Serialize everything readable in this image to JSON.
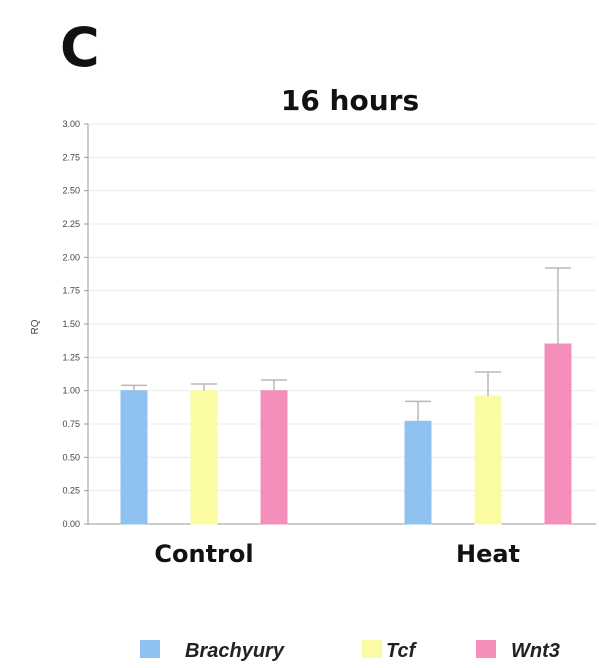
{
  "panel_label": "C",
  "chart_data": {
    "type": "bar",
    "title": "16 hours",
    "xlabel": "",
    "ylabel": "RQ",
    "categories": [
      "Control",
      "Heat"
    ],
    "ylim": [
      0,
      3
    ],
    "yticks": [
      "0.00",
      "0.25",
      "0.50",
      "0.75",
      "1.00",
      "1.25",
      "1.50",
      "1.75",
      "2.00",
      "2.25",
      "2.50",
      "2.75",
      "3.00"
    ],
    "grid": true,
    "legend_position": "bottom",
    "series": [
      {
        "name": "Brachyury",
        "color": "#8fc2f1",
        "values": [
          1.0,
          0.77
        ],
        "errors": [
          0.04,
          0.15
        ]
      },
      {
        "name": "Tcf",
        "color": "#fbfba4",
        "values": [
          1.0,
          0.96
        ],
        "errors": [
          0.05,
          0.18
        ]
      },
      {
        "name": "Wnt3",
        "color": "#f48fbc",
        "values": [
          1.0,
          1.35
        ],
        "errors": [
          0.08,
          0.57
        ]
      }
    ]
  }
}
